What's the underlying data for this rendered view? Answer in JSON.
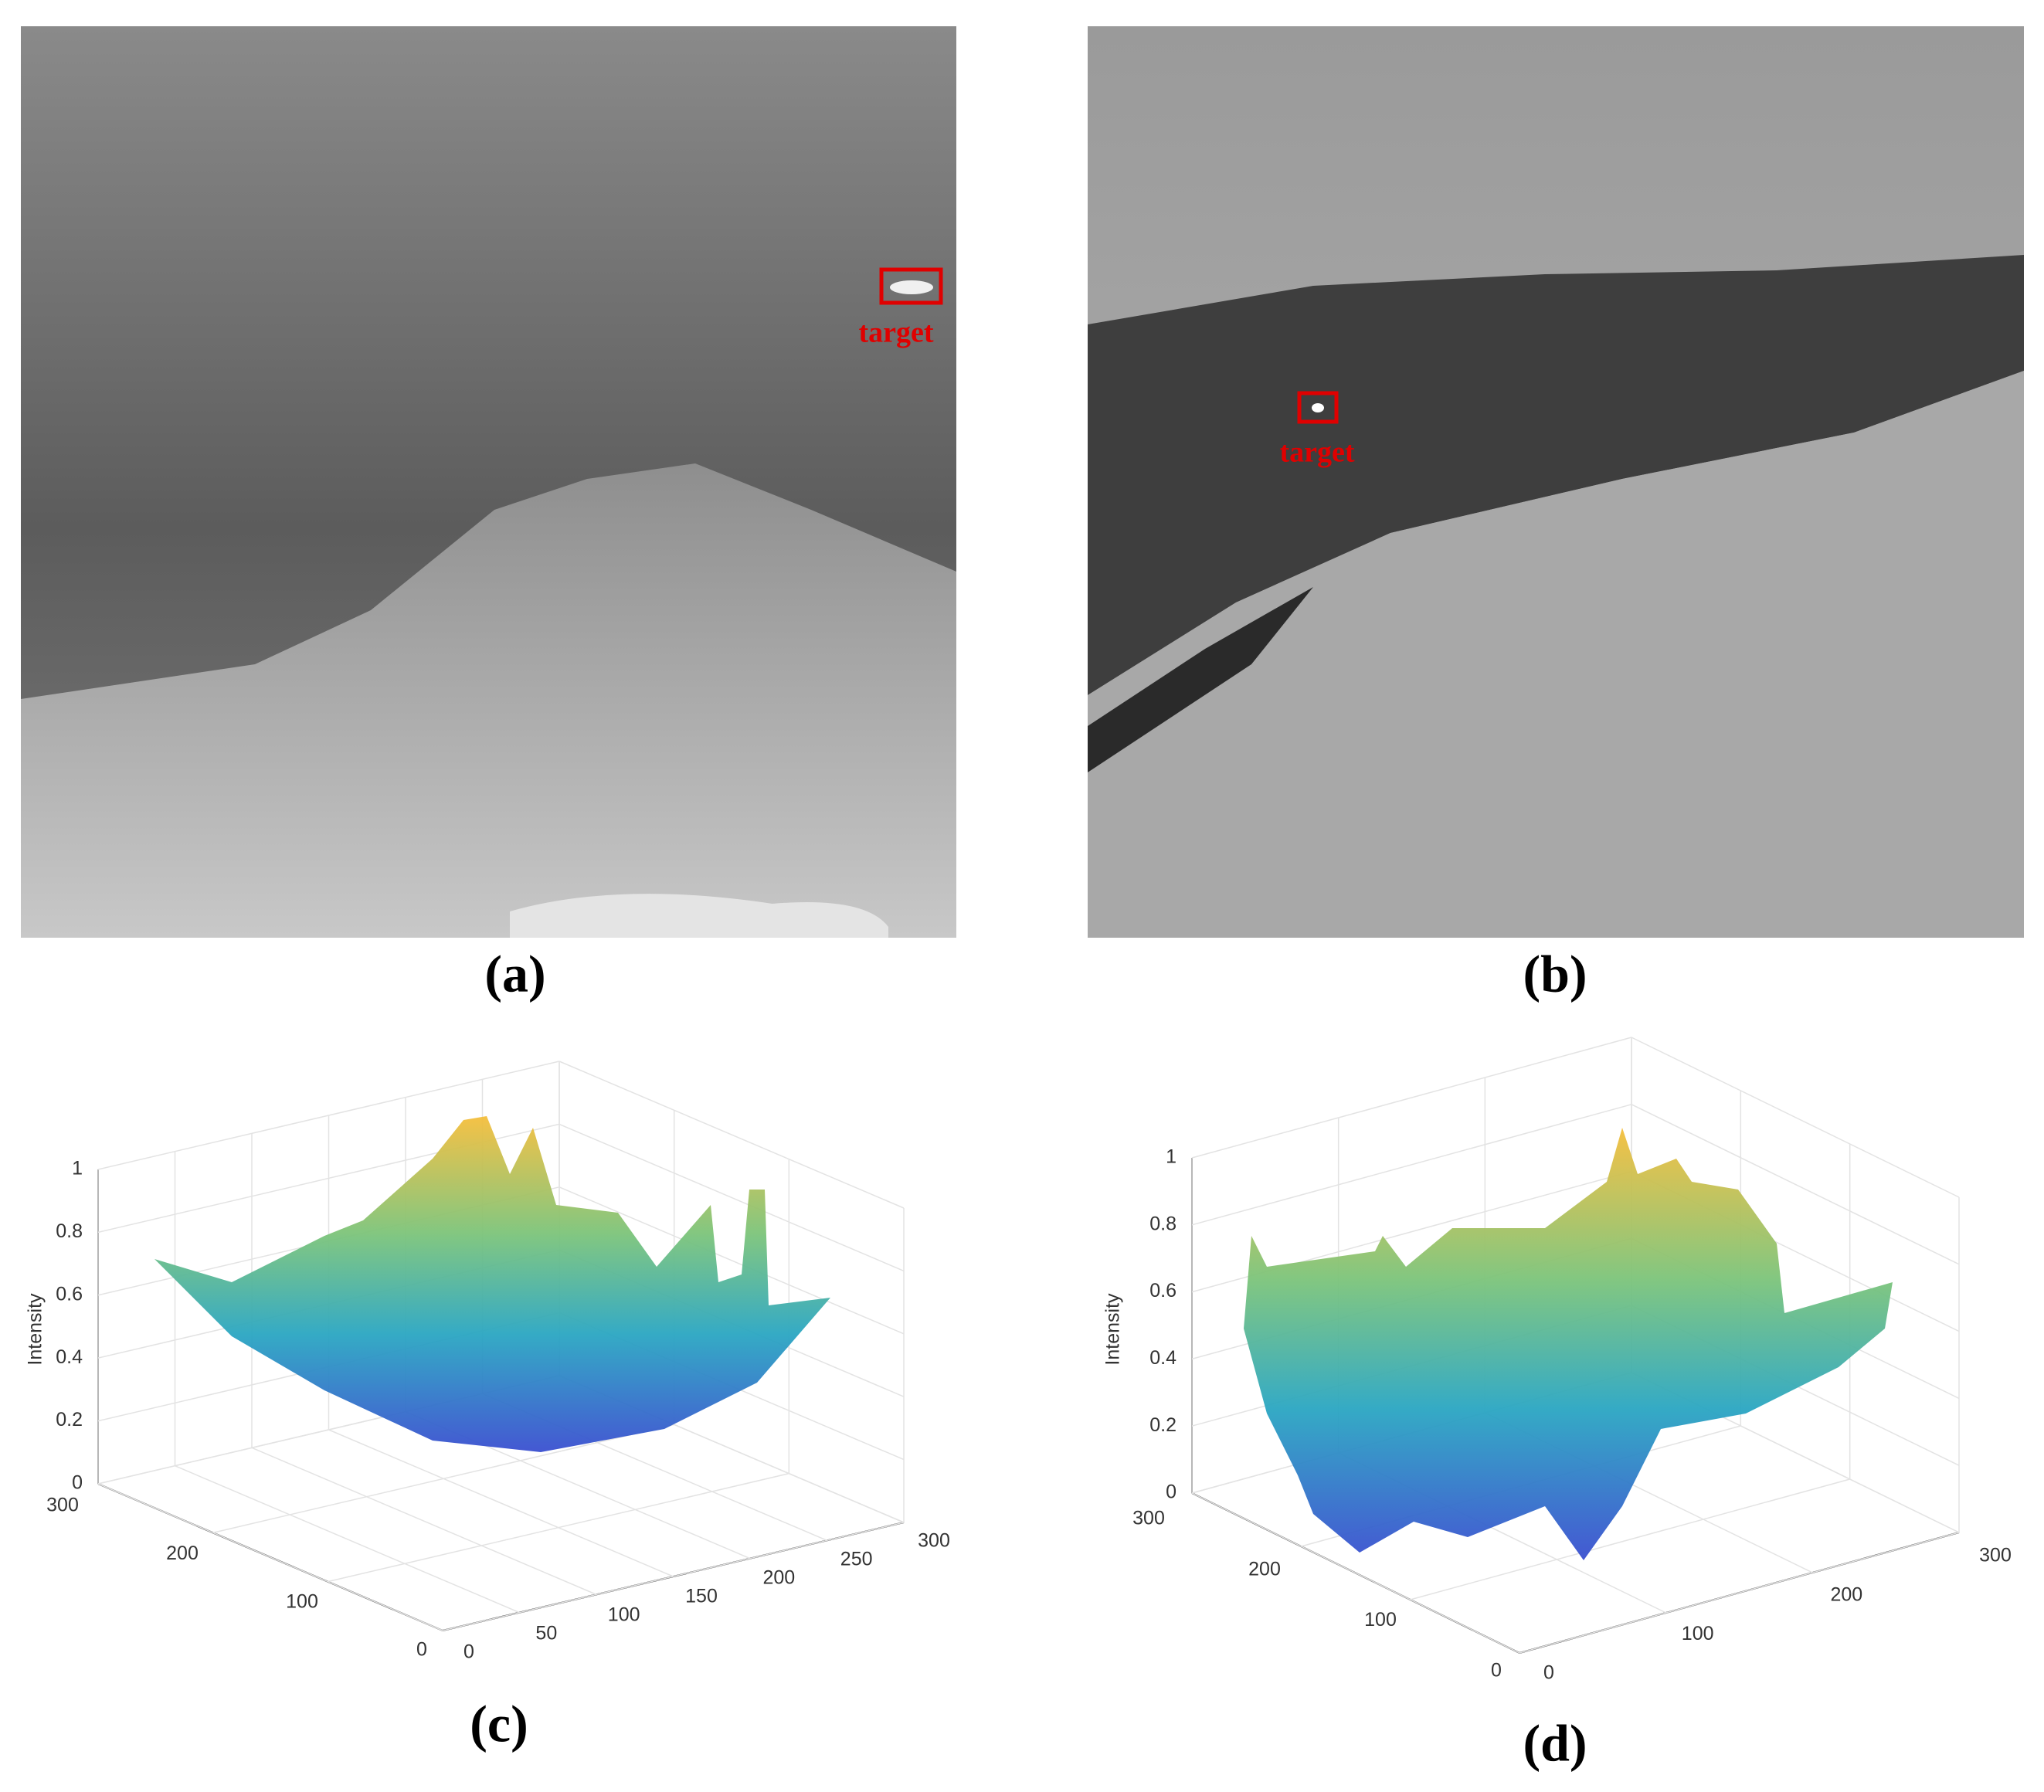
{
  "panels": [
    {
      "label": "(a)",
      "annotation": "target"
    },
    {
      "label": "(b)",
      "annotation": "target"
    },
    {
      "label": "(c)",
      "zlabel": "Intensity",
      "zticks": [
        0,
        0.2,
        0.4,
        0.6,
        0.8,
        1
      ],
      "yticks": [
        0,
        100,
        200,
        300
      ],
      "xticks": [
        0,
        50,
        100,
        150,
        200,
        250,
        300
      ]
    },
    {
      "label": "(d)",
      "zlabel": "Intensity",
      "zticks": [
        0,
        0.2,
        0.4,
        0.6,
        0.8,
        1
      ],
      "yticks": [
        0,
        100,
        200,
        300
      ],
      "xticks": [
        0,
        100,
        200,
        300
      ]
    }
  ]
}
